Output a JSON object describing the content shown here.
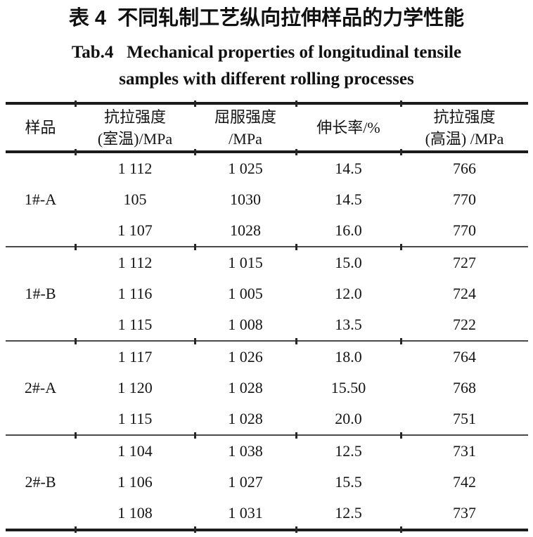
{
  "page": {
    "title_zh": "表 4  不同轧制工艺纵向拉伸样品的力学性能",
    "title_en_line1": "Tab.4   Mechanical properties of longitudinal tensile",
    "title_en_line2": "samples with different rolling processes"
  },
  "colors": {
    "text": "#141414",
    "rule_heavy": "#1b1b1b",
    "rule_light": "#4a4a4a",
    "background": "#ffffff"
  },
  "table": {
    "headers": [
      {
        "line1": "样品",
        "line2": ""
      },
      {
        "line1": "抗拉强度",
        "line2": "(室温)/MPa"
      },
      {
        "line1": "屈服强度",
        "line2": "/MPa"
      },
      {
        "line1": "伸长率/%",
        "line2": ""
      },
      {
        "line1": "抗拉强度",
        "line2": "(高温) /MPa"
      }
    ],
    "groups": [
      {
        "sample": "1#-A",
        "rows": [
          [
            "1 112",
            "1 025",
            "14.5",
            "766"
          ],
          [
            "105",
            "1030",
            "14.5",
            "770"
          ],
          [
            "1 107",
            "1028",
            "16.0",
            "770"
          ]
        ]
      },
      {
        "sample": "1#-B",
        "rows": [
          [
            "1 112",
            "1 015",
            "15.0",
            "727"
          ],
          [
            "1 116",
            "1 005",
            "12.0",
            "724"
          ],
          [
            "1 115",
            "1 008",
            "13.5",
            "722"
          ]
        ]
      },
      {
        "sample": "2#-A",
        "rows": [
          [
            "1 117",
            "1 026",
            "18.0",
            "764"
          ],
          [
            "1 120",
            "1 028",
            "15.50",
            "768"
          ],
          [
            "1 115",
            "1 028",
            "20.0",
            "751"
          ]
        ]
      },
      {
        "sample": "2#-B",
        "rows": [
          [
            "1 104",
            "1 038",
            "12.5",
            "731"
          ],
          [
            "1 106",
            "1 027",
            "15.5",
            "742"
          ],
          [
            "1 108",
            "1 031",
            "12.5",
            "737"
          ]
        ]
      }
    ]
  }
}
